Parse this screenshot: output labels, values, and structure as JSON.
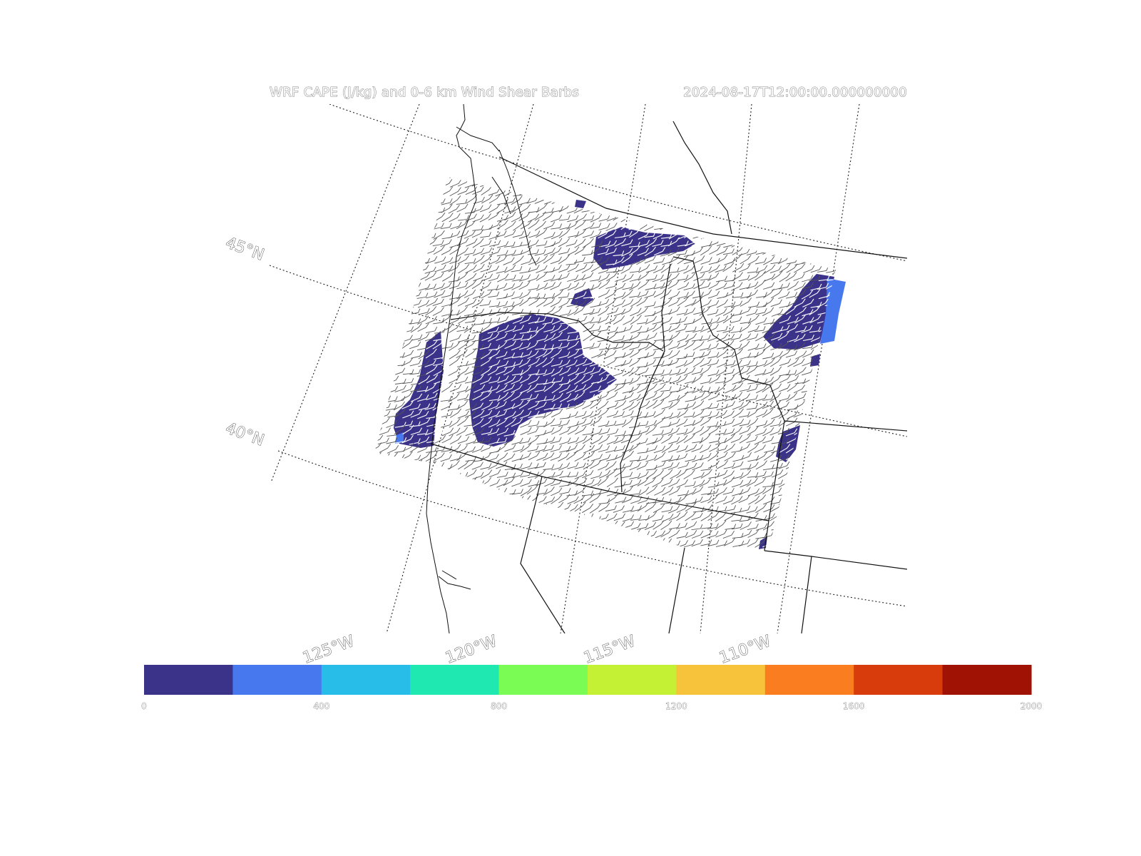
{
  "figure": {
    "title_left": "WRF CAPE (J/kg) and 0-6 km Wind Shear Barbs",
    "title_right": "2024-08-17T12:00:00.000000000"
  },
  "map": {
    "latitude_labels": [
      "45°N",
      "40°N"
    ],
    "longitude_labels": [
      "125°W",
      "120°W",
      "115°W",
      "110°W"
    ],
    "gridlines": "dotted",
    "colors": {
      "border": "#111111",
      "gridline": "#222222",
      "barb": "#555555"
    }
  },
  "colorbar": {
    "orientation": "horizontal",
    "range": [
      0,
      2000
    ],
    "levels": [
      0,
      200,
      400,
      600,
      800,
      1000,
      1200,
      1400,
      1600,
      1800,
      2000
    ],
    "tick_labels": [
      "0",
      "400",
      "800",
      "1200",
      "1600",
      "2000"
    ],
    "colors": [
      "#3b3289",
      "#4878ee",
      "#28bde8",
      "#1fe9b0",
      "#7bfc54",
      "#c4f133",
      "#f6c33a",
      "#fa7e20",
      "#d93c0c",
      "#a01203"
    ]
  },
  "chart_data": {
    "type": "heatmap",
    "field": "CAPE",
    "units": "J/kg",
    "valid_time": "2024-08-17T12:00:00.000000000",
    "value_range": [
      0,
      2000
    ],
    "observed_max_bin": [
      200,
      400
    ],
    "overlay": "0-6 km wind shear barbs"
  }
}
